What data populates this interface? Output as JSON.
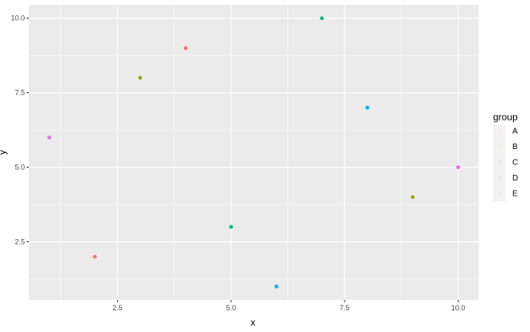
{
  "chart_data": {
    "type": "scatter",
    "xlabel": "x",
    "ylabel": "y",
    "xlim": [
      0.55,
      10.45
    ],
    "ylim": [
      0.55,
      10.45
    ],
    "x_ticks": [
      2.5,
      5.0,
      7.5,
      10.0
    ],
    "x_tick_labels": [
      "2.5",
      "5.0",
      "7.5",
      "10.0"
    ],
    "y_ticks": [
      2.5,
      5.0,
      7.5,
      10.0
    ],
    "y_tick_labels": [
      "2.5",
      "5.0",
      "7.5",
      "10.0"
    ],
    "grid": true,
    "legend": {
      "title": "group",
      "placement": "right",
      "entries": [
        "A",
        "B",
        "C",
        "D",
        "E"
      ]
    },
    "colors": {
      "A": "#F8766D",
      "B": "#A3A500",
      "C": "#00BF7D",
      "D": "#00B0F6",
      "E": "#E76BF3",
      "panel": "#EBEBEB",
      "grid": "#FFFFFF",
      "legend_key": "#F2F2F2"
    },
    "series": [
      {
        "name": "A",
        "points": [
          {
            "x": 2,
            "y": 2
          },
          {
            "x": 4,
            "y": 9
          }
        ]
      },
      {
        "name": "B",
        "points": [
          {
            "x": 3,
            "y": 8
          },
          {
            "x": 9,
            "y": 4
          }
        ]
      },
      {
        "name": "C",
        "points": [
          {
            "x": 5,
            "y": 3
          },
          {
            "x": 7,
            "y": 10
          }
        ]
      },
      {
        "name": "D",
        "points": [
          {
            "x": 6,
            "y": 1
          },
          {
            "x": 8,
            "y": 7
          }
        ]
      },
      {
        "name": "E",
        "points": [
          {
            "x": 1,
            "y": 6
          },
          {
            "x": 10,
            "y": 5
          }
        ]
      }
    ]
  }
}
